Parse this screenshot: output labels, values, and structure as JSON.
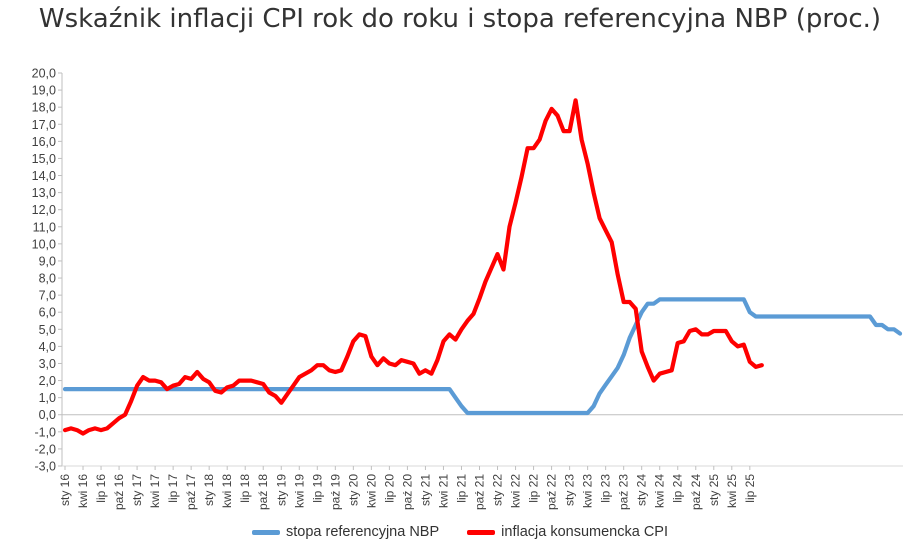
{
  "chart_data": {
    "type": "line",
    "title": "Wskaźnik inflacji CPI rok do roku i stopa referencyjna NBP (proc.)",
    "xlabel": "",
    "ylabel": "",
    "ylim": [
      -3,
      20
    ],
    "y_ticks": [
      "-3,0",
      "-2,0",
      "-1,0",
      "0,0",
      "1,0",
      "2,0",
      "3,0",
      "4,0",
      "5,0",
      "6,0",
      "7,0",
      "8,0",
      "9,0",
      "10,0",
      "11,0",
      "12,0",
      "13,0",
      "14,0",
      "15,0",
      "16,0",
      "17,0",
      "18,0",
      "19,0",
      "20,0"
    ],
    "x_tick_labels": [
      "sty 16",
      "kwi 16",
      "lip 16",
      "paź 16",
      "sty 17",
      "kwi 17",
      "lip 17",
      "paź 17",
      "sty 18",
      "kwi 18",
      "lip 18",
      "paź 18",
      "sty 19",
      "kwi 19",
      "lip 19",
      "paź 19",
      "sty 20",
      "kwi 20",
      "lip 20",
      "paź 20",
      "sty 21",
      "kwi 21",
      "lip 21",
      "paź 21",
      "sty 22",
      "kwi 22",
      "lip 22",
      "paź 22",
      "sty 23",
      "kwi 23",
      "lip 23",
      "paź 23",
      "sty 24",
      "kwi 24",
      "lip 24",
      "paź 24",
      "sty 25",
      "kwi 25",
      "lip 25"
    ],
    "grid": false,
    "legend_position": "bottom",
    "series": [
      {
        "name": "stopa referencyjna NBP",
        "color": "#5b9bd5",
        "values": [
          1.5,
          1.5,
          1.5,
          1.5,
          1.5,
          1.5,
          1.5,
          1.5,
          1.5,
          1.5,
          1.5,
          1.5,
          1.5,
          1.5,
          1.5,
          1.5,
          1.5,
          1.5,
          1.5,
          1.5,
          1.5,
          1.5,
          1.5,
          1.5,
          1.5,
          1.5,
          1.5,
          1.5,
          1.5,
          1.5,
          1.5,
          1.5,
          1.5,
          1.5,
          1.5,
          1.5,
          1.5,
          1.5,
          1.5,
          1.5,
          1.5,
          1.5,
          1.5,
          1.5,
          1.5,
          1.5,
          1.5,
          1.5,
          1.5,
          1.5,
          1.5,
          1.5,
          1.5,
          1.5,
          1.5,
          1.5,
          1.5,
          1.5,
          1.5,
          1.5,
          1.5,
          1.5,
          1.5,
          1.5,
          1.5,
          1.0,
          0.5,
          0.1,
          0.1,
          0.1,
          0.1,
          0.1,
          0.1,
          0.1,
          0.1,
          0.1,
          0.1,
          0.1,
          0.1,
          0.1,
          0.1,
          0.1,
          0.1,
          0.1,
          0.1,
          0.1,
          0.1,
          0.1,
          0.5,
          1.25,
          1.75,
          2.25,
          2.75,
          3.5,
          4.5,
          5.25,
          6.0,
          6.5,
          6.5,
          6.75,
          6.75,
          6.75,
          6.75,
          6.75,
          6.75,
          6.75,
          6.75,
          6.75,
          6.75,
          6.75,
          6.75,
          6.75,
          6.75,
          6.75,
          6.0,
          5.75,
          5.75,
          5.75,
          5.75,
          5.75,
          5.75,
          5.75,
          5.75,
          5.75,
          5.75,
          5.75,
          5.75,
          5.75,
          5.75,
          5.75,
          5.75,
          5.75,
          5.75,
          5.75,
          5.75,
          5.25,
          5.25,
          5.0,
          5.0,
          4.75
        ]
      },
      {
        "name": "inflacja konsumencka CPI",
        "color": "#ff0000",
        "values": [
          -0.9,
          -0.8,
          -0.9,
          -1.1,
          -0.9,
          -0.8,
          -0.9,
          -0.8,
          -0.5,
          -0.2,
          0.0,
          0.8,
          1.7,
          2.2,
          2.0,
          2.0,
          1.9,
          1.5,
          1.7,
          1.8,
          2.2,
          2.1,
          2.5,
          2.1,
          1.9,
          1.4,
          1.3,
          1.6,
          1.7,
          2.0,
          2.0,
          2.0,
          1.9,
          1.8,
          1.3,
          1.1,
          0.7,
          1.2,
          1.7,
          2.2,
          2.4,
          2.6,
          2.9,
          2.9,
          2.6,
          2.5,
          2.6,
          3.4,
          4.3,
          4.7,
          4.6,
          3.4,
          2.9,
          3.3,
          3.0,
          2.9,
          3.2,
          3.1,
          3.0,
          2.4,
          2.6,
          2.4,
          3.2,
          4.3,
          4.7,
          4.4,
          5.0,
          5.5,
          5.9,
          6.8,
          7.8,
          8.6,
          9.4,
          8.5,
          11.0,
          12.4,
          13.9,
          15.6,
          15.6,
          16.1,
          17.2,
          17.9,
          17.5,
          16.6,
          16.6,
          18.4,
          16.1,
          14.7,
          13.0,
          11.5,
          10.8,
          10.1,
          8.2,
          6.6,
          6.6,
          6.2,
          3.7,
          2.8,
          2.0,
          2.4,
          2.5,
          2.6,
          4.2,
          4.3,
          4.9,
          5.0,
          4.7,
          4.7,
          4.9,
          4.9,
          4.9,
          4.3,
          4.0,
          4.1,
          3.1,
          2.8,
          2.9
        ]
      }
    ]
  }
}
